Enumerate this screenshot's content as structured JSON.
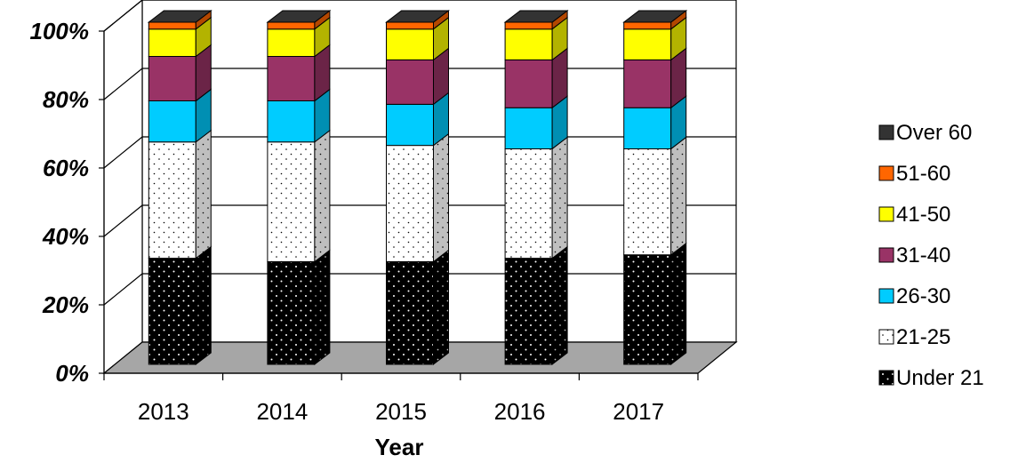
{
  "chart_data": {
    "type": "bar",
    "stacked": true,
    "three_d": true,
    "categories": [
      "2013",
      "2014",
      "2015",
      "2016",
      "2017"
    ],
    "xlabel": "Year",
    "ylabel": "",
    "ylim": [
      0,
      100
    ],
    "ytick_values": [
      0,
      20,
      40,
      60,
      80,
      100
    ],
    "ytick_labels": [
      "0%",
      "20%",
      "40%",
      "60%",
      "80%",
      "100%"
    ],
    "grid": true,
    "legend_position": "right",
    "series": [
      {
        "name": "Under 21",
        "color": "#000000",
        "pattern": "dots-white",
        "values": [
          31,
          30,
          30,
          31,
          32
        ]
      },
      {
        "name": "21-25",
        "color": "#ffffff",
        "pattern": "dots-black",
        "values": [
          34,
          35,
          34,
          32,
          31
        ]
      },
      {
        "name": "26-30",
        "color": "#00ccff",
        "values": [
          12,
          12,
          12,
          12,
          12
        ]
      },
      {
        "name": "31-40",
        "color": "#993366",
        "values": [
          13,
          13,
          13,
          14,
          14
        ]
      },
      {
        "name": "41-50",
        "color": "#ffff00",
        "values": [
          8,
          8,
          9,
          9,
          9
        ]
      },
      {
        "name": "51-60",
        "color": "#ff6600",
        "values": [
          2,
          2,
          2,
          2,
          2
        ]
      },
      {
        "name": "Over 60",
        "color": "#333333",
        "values": [
          0,
          0,
          0,
          0,
          0
        ]
      }
    ]
  }
}
